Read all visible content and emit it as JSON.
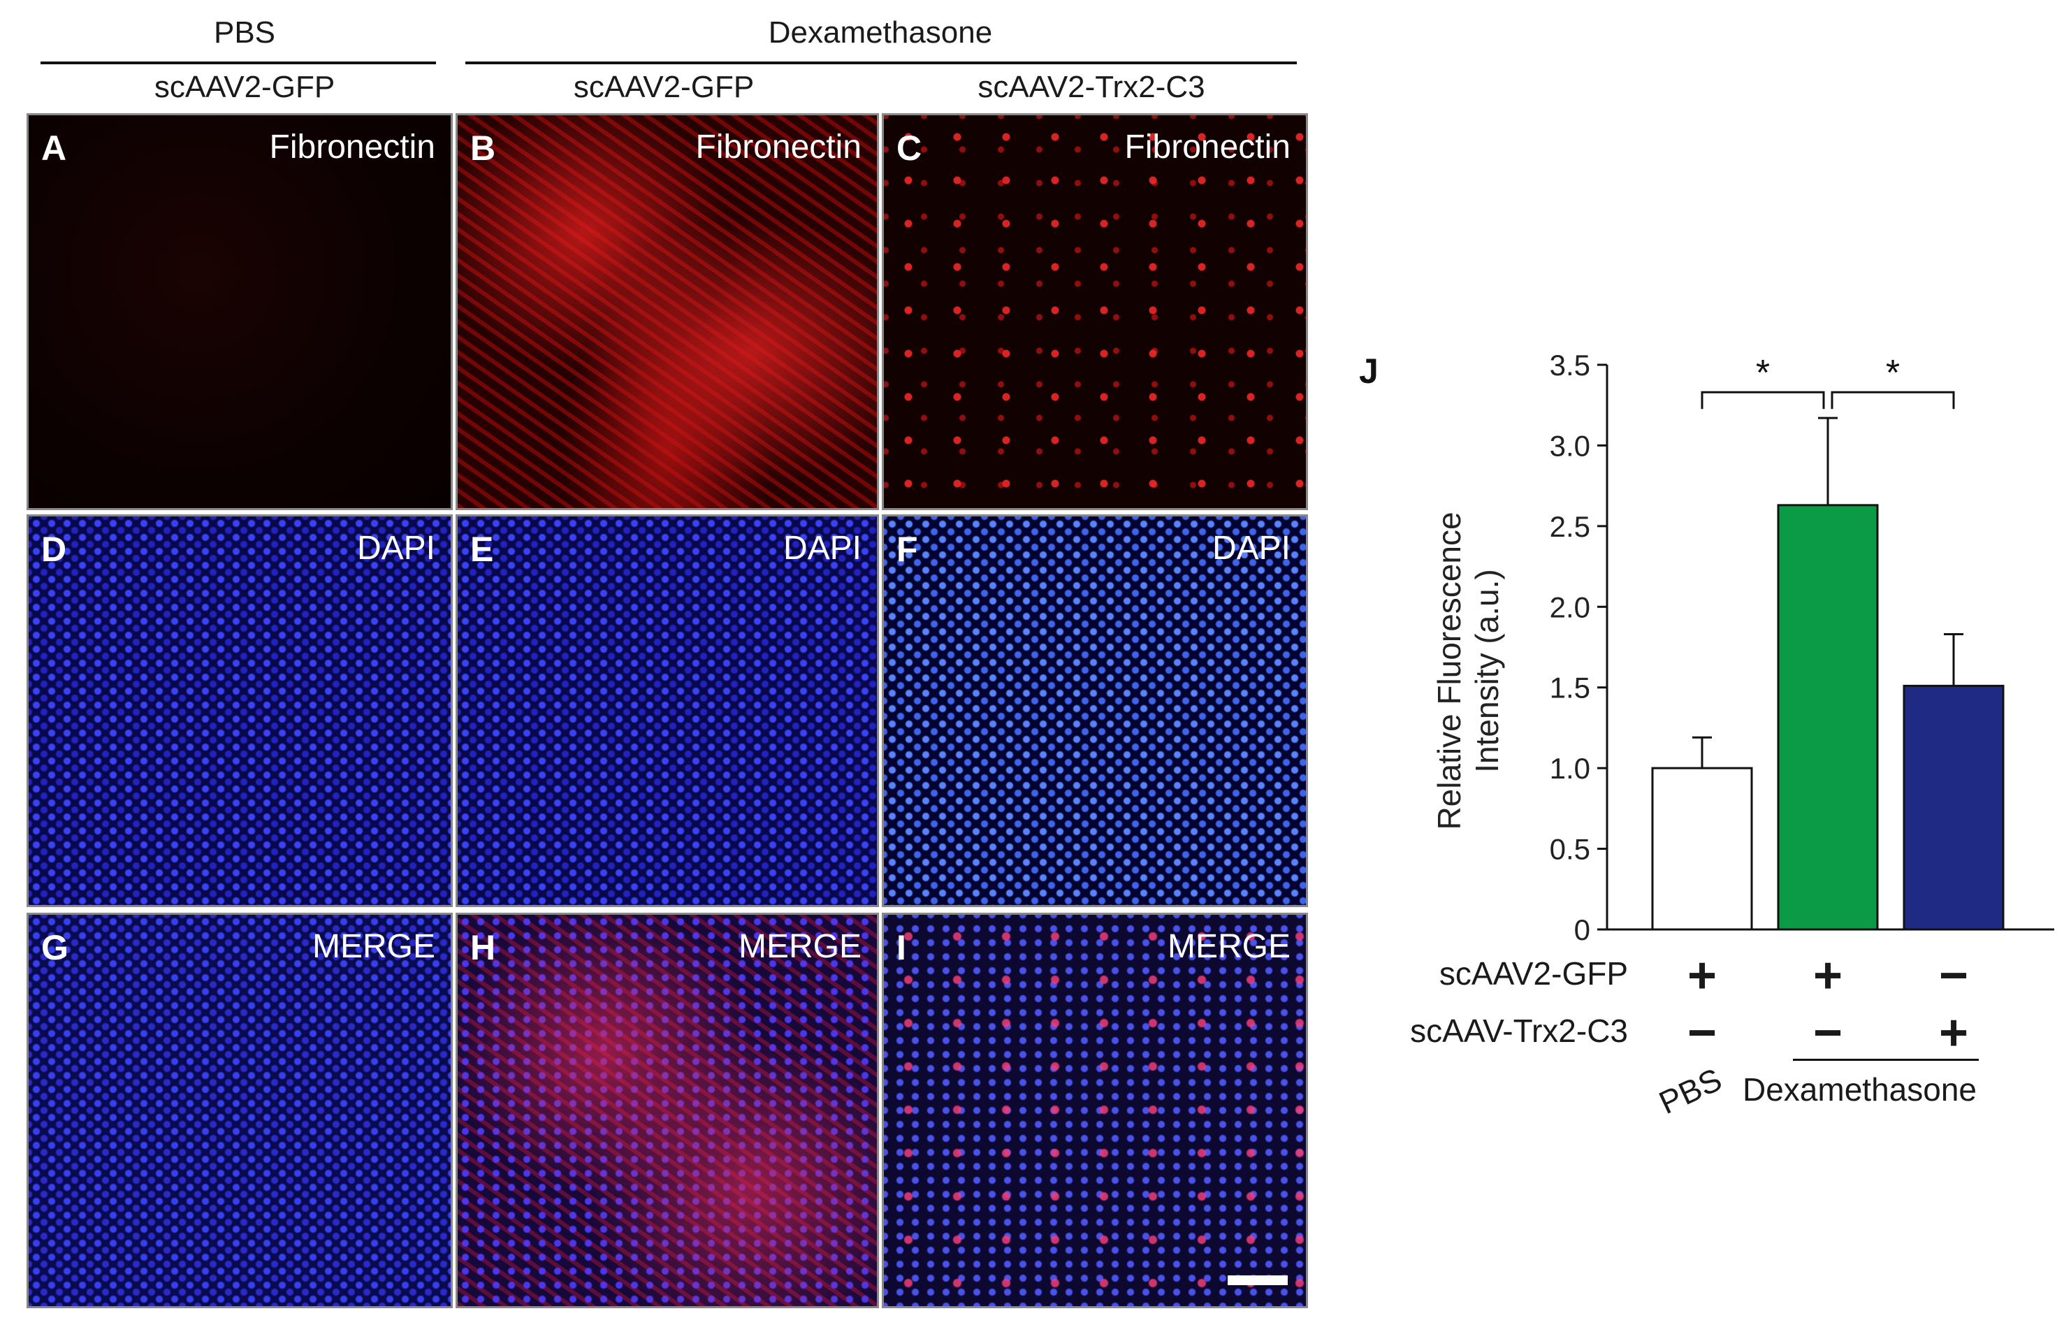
{
  "headers": {
    "pbs": "PBS",
    "dex": "Dexamethasone",
    "col1": "scAAV2-GFP",
    "col2": "scAAV2-GFP",
    "col3": "scAAV2-Trx2-C3"
  },
  "panels": [
    {
      "letter": "A",
      "label": "Fibronectin"
    },
    {
      "letter": "B",
      "label": "Fibronectin"
    },
    {
      "letter": "C",
      "label": "Fibronectin"
    },
    {
      "letter": "D",
      "label": "DAPI"
    },
    {
      "letter": "E",
      "label": "DAPI"
    },
    {
      "letter": "F",
      "label": "DAPI"
    },
    {
      "letter": "G",
      "label": "MERGE"
    },
    {
      "letter": "H",
      "label": "MERGE"
    },
    {
      "letter": "I",
      "label": "MERGE"
    }
  ],
  "chart_data": {
    "type": "bar",
    "panel_letter": "J",
    "ylabel_line1": "Relative Fluorescence",
    "ylabel_line2": "Intensity (a.u.)",
    "ylim": [
      0,
      3.5
    ],
    "yticks": [
      "0",
      "0.5",
      "1.0",
      "1.5",
      "2.0",
      "2.5",
      "3.0",
      "3.5"
    ],
    "values": [
      1.0,
      2.63,
      1.51
    ],
    "errors": [
      0.19,
      0.54,
      0.32
    ],
    "colors": [
      "#ffffff",
      "#0b9a45",
      "#1f2a85"
    ],
    "significance": [
      {
        "from": 0,
        "to": 1,
        "label": "*"
      },
      {
        "from": 1,
        "to": 2,
        "label": "*"
      }
    ],
    "row_labels": [
      "scAAV2-GFP",
      "scAAV-Trx2-C3"
    ],
    "row1_symbols": [
      "+",
      "+",
      "−"
    ],
    "row2_symbols": [
      "−",
      "−",
      "+"
    ],
    "group_pbs": "PBS",
    "group_dex": "Dexamethasone"
  }
}
